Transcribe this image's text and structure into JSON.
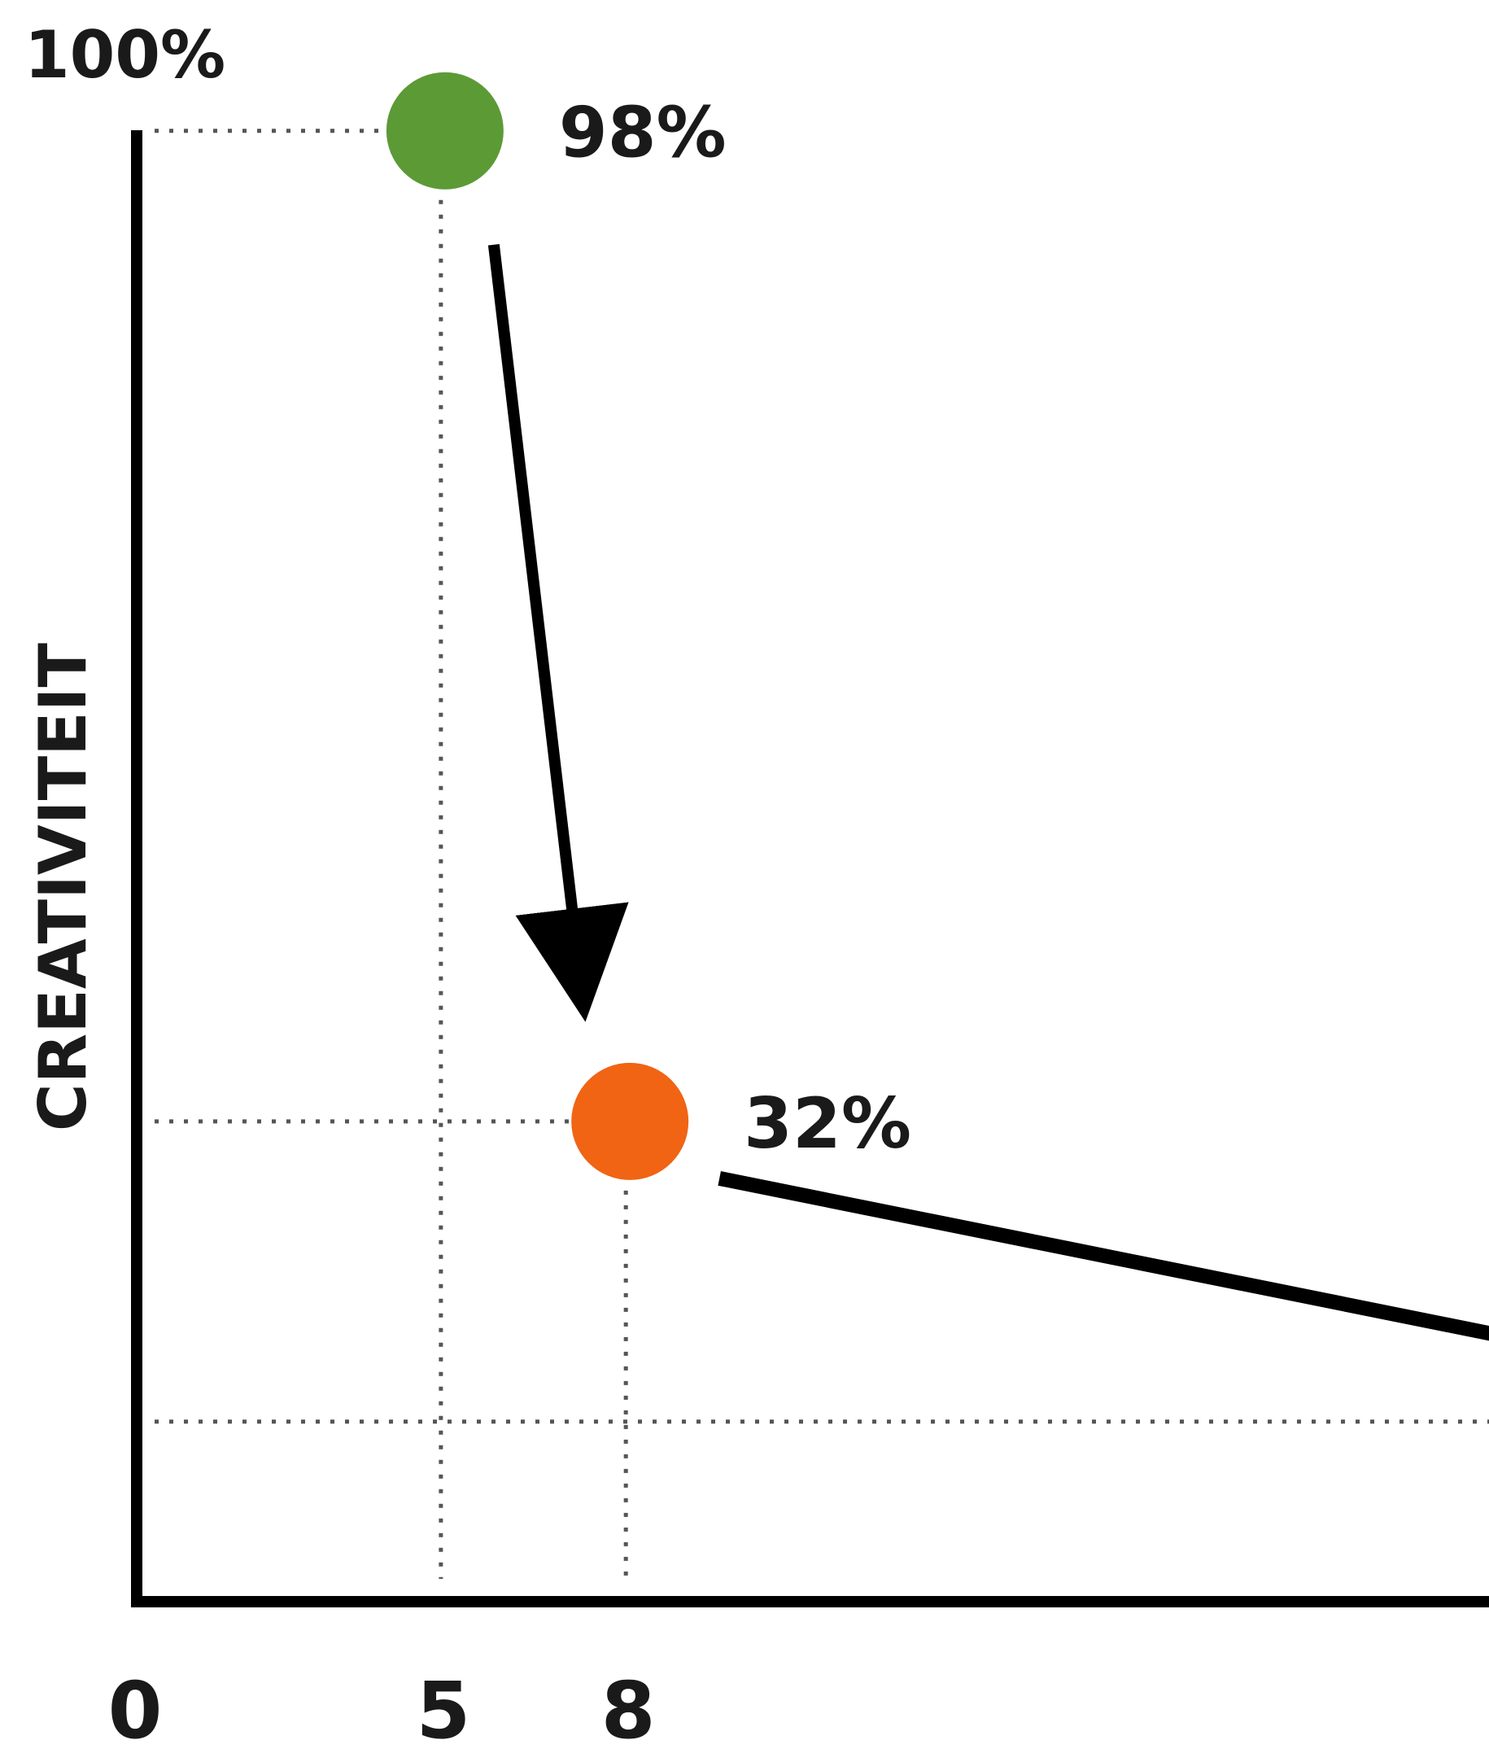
{
  "chart_data": {
    "type": "scatter",
    "title": "",
    "xlabel": "",
    "ylabel": "CREATIVITEIT",
    "y_top_label": "100%",
    "x_tick_labels": [
      "0",
      "5",
      "8"
    ],
    "xlim": [
      0,
      22
    ],
    "ylim": [
      0,
      100
    ],
    "grid": false,
    "points": [
      {
        "x": 5,
        "y": 98,
        "label": "98%",
        "color": "#5c9a36"
      },
      {
        "x": 8,
        "y": 32,
        "label": "32%",
        "color": "#f06414"
      }
    ],
    "reference_line_y": 12,
    "trend_line_end": {
      "x": 22,
      "y": 20
    },
    "axis_color": "#000000"
  }
}
